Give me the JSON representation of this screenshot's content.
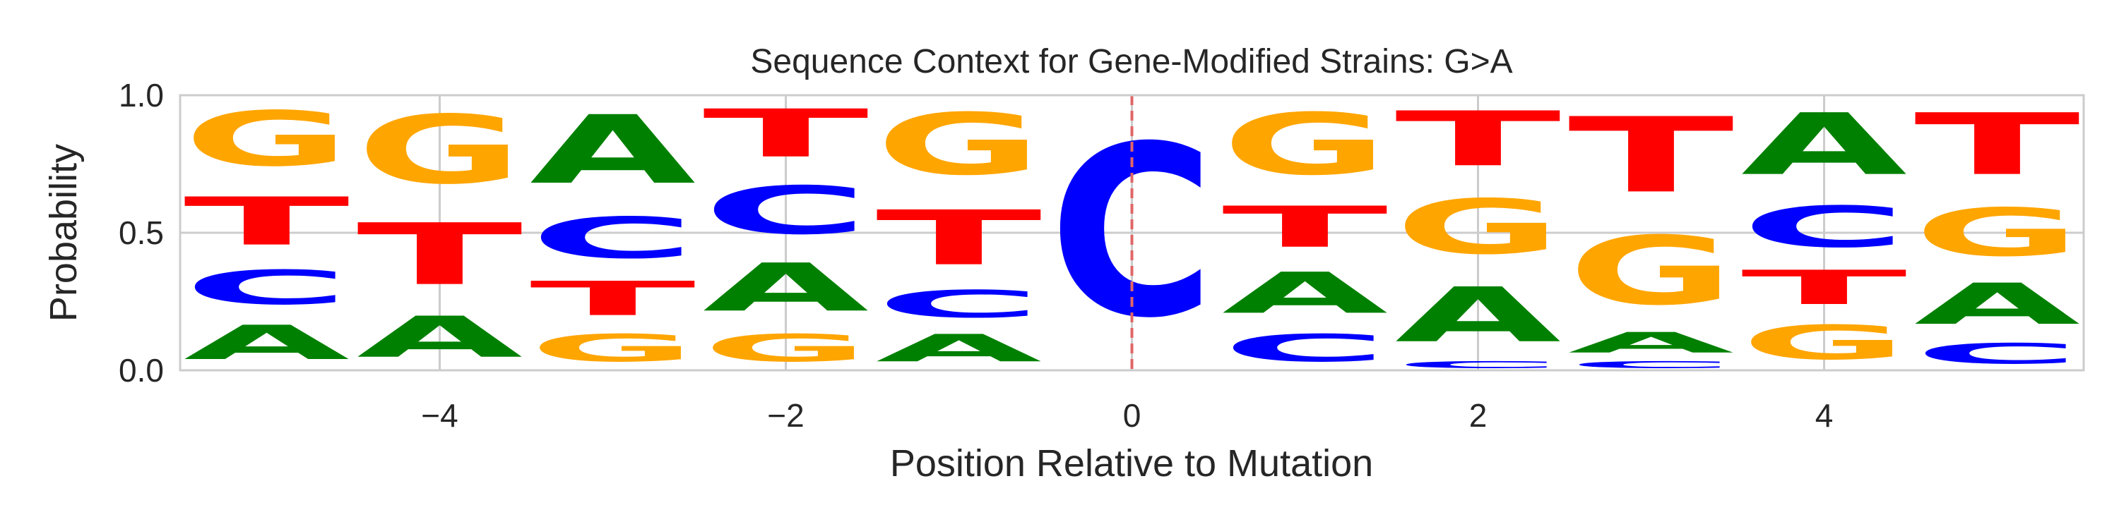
{
  "chart_data": {
    "type": "sequence-logo",
    "title": "Sequence Context for Gene-Modified Strains: G>A",
    "xlabel": "Position Relative to Mutation",
    "ylabel": "Probability",
    "xlim": [
      -5.5,
      5.5
    ],
    "ylim": [
      0,
      1
    ],
    "x_ticks": [
      -4,
      -2,
      0,
      2,
      4
    ],
    "x_tick_labels": [
      "−4",
      "−2",
      "0",
      "2",
      "4"
    ],
    "y_ticks": [
      0,
      0.5,
      1.0
    ],
    "y_tick_labels": [
      "0.0",
      "0.5",
      "1.0"
    ],
    "grid": true,
    "mutation_marker": {
      "x": 0,
      "style": "dashed",
      "color": "#e06666"
    },
    "colors": {
      "A": "#008000",
      "C": "#0000ff",
      "G": "#ffa500",
      "T": "#ff0000"
    },
    "positions": [
      {
        "pos": -5,
        "stack": [
          {
            "base": "A",
            "p": 0.2
          },
          {
            "base": "C",
            "p": 0.2
          },
          {
            "base": "T",
            "p": 0.28
          },
          {
            "base": "G",
            "p": 0.32
          }
        ]
      },
      {
        "pos": -4,
        "stack": [
          {
            "base": "A",
            "p": 0.24
          },
          {
            "base": "T",
            "p": 0.36
          },
          {
            "base": "G",
            "p": 0.4
          }
        ]
      },
      {
        "pos": -3,
        "stack": [
          {
            "base": "G",
            "p": 0.16
          },
          {
            "base": "T",
            "p": 0.2
          },
          {
            "base": "C",
            "p": 0.24
          },
          {
            "base": "A",
            "p": 0.4
          }
        ]
      },
      {
        "pos": -2,
        "stack": [
          {
            "base": "G",
            "p": 0.16
          },
          {
            "base": "A",
            "p": 0.28
          },
          {
            "base": "C",
            "p": 0.28
          },
          {
            "base": "T",
            "p": 0.28
          }
        ]
      },
      {
        "pos": -1,
        "stack": [
          {
            "base": "A",
            "p": 0.16
          },
          {
            "base": "C",
            "p": 0.16
          },
          {
            "base": "T",
            "p": 0.32
          },
          {
            "base": "G",
            "p": 0.36
          }
        ]
      },
      {
        "pos": 0,
        "stack": [
          {
            "base": "C",
            "p": 1.0
          }
        ]
      },
      {
        "pos": 1,
        "stack": [
          {
            "base": "C",
            "p": 0.16
          },
          {
            "base": "A",
            "p": 0.24
          },
          {
            "base": "T",
            "p": 0.24
          },
          {
            "base": "G",
            "p": 0.36
          }
        ]
      },
      {
        "pos": 2,
        "stack": [
          {
            "base": "C",
            "p": 0.04
          },
          {
            "base": "A",
            "p": 0.32
          },
          {
            "base": "G",
            "p": 0.32
          },
          {
            "base": "T",
            "p": 0.32
          }
        ]
      },
      {
        "pos": 3,
        "stack": [
          {
            "base": "C",
            "p": 0.04
          },
          {
            "base": "A",
            "p": 0.12
          },
          {
            "base": "G",
            "p": 0.4
          },
          {
            "base": "T",
            "p": 0.44
          }
        ]
      },
      {
        "pos": 4,
        "stack": [
          {
            "base": "G",
            "p": 0.2
          },
          {
            "base": "T",
            "p": 0.2
          },
          {
            "base": "C",
            "p": 0.24
          },
          {
            "base": "A",
            "p": 0.36
          }
        ]
      },
      {
        "pos": 5,
        "stack": [
          {
            "base": "C",
            "p": 0.12
          },
          {
            "base": "A",
            "p": 0.24
          },
          {
            "base": "G",
            "p": 0.28
          },
          {
            "base": "T",
            "p": 0.36
          }
        ]
      }
    ]
  }
}
